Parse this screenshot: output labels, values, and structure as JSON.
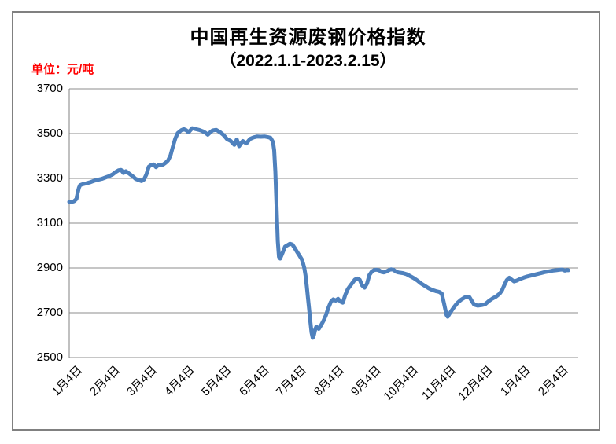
{
  "chart": {
    "title": "中国再生资源废钢价格指数",
    "subtitle": "（2022.1.1-2023.2.15）",
    "unit_label": "单位：元/吨",
    "colors": {
      "line": "#4F81BD",
      "gridline": "#8C8C8C",
      "axis": "#808080",
      "outer_border": "#808080",
      "unit_label": "#FF0000",
      "tick_label": "#000000",
      "title": "#000000",
      "background": "#FFFFFF"
    }
  },
  "chart_data": {
    "type": "line",
    "title": "中国再生资源废钢价格指数（2022.1.1-2023.2.15）",
    "ylabel": "元/吨",
    "ylim": [
      2500,
      3700
    ],
    "y_ticks": [
      3700,
      3500,
      3300,
      3100,
      2900,
      2700,
      2500
    ],
    "x_tick_labels": [
      "1月4日",
      "2月4日",
      "3月4日",
      "4月4日",
      "5月4日",
      "6月4日",
      "7月4日",
      "8月4日",
      "9月4日",
      "10月4日",
      "11月4日",
      "12月4日",
      "1月4日",
      "2月4日"
    ],
    "grid": "horizontal-major",
    "legend": "none",
    "series": [
      {
        "points": [
          [
            "2022-01-04",
            3195
          ],
          [
            "2022-01-06",
            3195
          ],
          [
            "2022-01-08",
            3198
          ],
          [
            "2022-01-10",
            3208
          ],
          [
            "2022-01-11",
            3235
          ],
          [
            "2022-01-12",
            3258
          ],
          [
            "2022-01-13",
            3270
          ],
          [
            "2022-01-15",
            3274
          ],
          [
            "2022-01-18",
            3278
          ],
          [
            "2022-01-21",
            3282
          ],
          [
            "2022-01-24",
            3288
          ],
          [
            "2022-01-27",
            3293
          ],
          [
            "2022-01-31",
            3298
          ],
          [
            "2022-02-03",
            3304
          ],
          [
            "2022-02-06",
            3310
          ],
          [
            "2022-02-09",
            3318
          ],
          [
            "2022-02-12",
            3330
          ],
          [
            "2022-02-14",
            3336
          ],
          [
            "2022-02-16",
            3338
          ],
          [
            "2022-02-18",
            3324
          ],
          [
            "2022-02-20",
            3332
          ],
          [
            "2022-02-23",
            3320
          ],
          [
            "2022-02-26",
            3308
          ],
          [
            "2022-02-28",
            3298
          ],
          [
            "2022-03-02",
            3288
          ],
          [
            "2022-03-04",
            3295
          ],
          [
            "2022-03-06",
            3318
          ],
          [
            "2022-03-08",
            3352
          ],
          [
            "2022-03-10",
            3360
          ],
          [
            "2022-03-12",
            3362
          ],
          [
            "2022-03-14",
            3350
          ],
          [
            "2022-03-16",
            3360
          ],
          [
            "2022-03-18",
            3358
          ],
          [
            "2022-03-20",
            3362
          ],
          [
            "2022-03-22",
            3370
          ],
          [
            "2022-03-24",
            3380
          ],
          [
            "2022-03-26",
            3402
          ],
          [
            "2022-03-28",
            3442
          ],
          [
            "2022-03-30",
            3478
          ],
          [
            "2022-04-01",
            3502
          ],
          [
            "2022-04-04",
            3515
          ],
          [
            "2022-04-06",
            3520
          ],
          [
            "2022-04-08",
            3515
          ],
          [
            "2022-04-10",
            3506
          ],
          [
            "2022-04-13",
            3524
          ],
          [
            "2022-04-16",
            3520
          ],
          [
            "2022-04-19",
            3516
          ],
          [
            "2022-04-22",
            3510
          ],
          [
            "2022-04-24",
            3504
          ],
          [
            "2022-04-26",
            3495
          ],
          [
            "2022-04-28",
            3506
          ],
          [
            "2022-04-30",
            3514
          ],
          [
            "2022-05-02",
            3517
          ],
          [
            "2022-05-05",
            3507
          ],
          [
            "2022-05-08",
            3494
          ],
          [
            "2022-05-11",
            3475
          ],
          [
            "2022-05-14",
            3467
          ],
          [
            "2022-05-17",
            3450
          ],
          [
            "2022-05-19",
            3474
          ],
          [
            "2022-05-21",
            3444
          ],
          [
            "2022-05-24",
            3467
          ],
          [
            "2022-05-27",
            3456
          ],
          [
            "2022-05-30",
            3476
          ],
          [
            "2022-06-02",
            3483
          ],
          [
            "2022-06-05",
            3487
          ],
          [
            "2022-06-08",
            3486
          ],
          [
            "2022-06-11",
            3487
          ],
          [
            "2022-06-14",
            3484
          ],
          [
            "2022-06-16",
            3481
          ],
          [
            "2022-06-18",
            3462
          ],
          [
            "2022-06-19",
            3425
          ],
          [
            "2022-06-20",
            3330
          ],
          [
            "2022-06-21",
            3180
          ],
          [
            "2022-06-22",
            3020
          ],
          [
            "2022-06-23",
            2950
          ],
          [
            "2022-06-24",
            2942
          ],
          [
            "2022-06-26",
            2968
          ],
          [
            "2022-06-28",
            2995
          ],
          [
            "2022-07-01",
            3008
          ],
          [
            "2022-07-03",
            3005
          ],
          [
            "2022-07-05",
            2990
          ],
          [
            "2022-07-07",
            2972
          ],
          [
            "2022-07-09",
            2955
          ],
          [
            "2022-07-11",
            2938
          ],
          [
            "2022-07-12",
            2920
          ],
          [
            "2022-07-13",
            2900
          ],
          [
            "2022-07-14",
            2868
          ],
          [
            "2022-07-15",
            2820
          ],
          [
            "2022-07-16",
            2768
          ],
          [
            "2022-07-17",
            2718
          ],
          [
            "2022-07-18",
            2660
          ],
          [
            "2022-07-19",
            2612
          ],
          [
            "2022-07-20",
            2588
          ],
          [
            "2022-07-21",
            2600
          ],
          [
            "2022-07-22",
            2625
          ],
          [
            "2022-07-23",
            2638
          ],
          [
            "2022-07-25",
            2628
          ],
          [
            "2022-07-27",
            2645
          ],
          [
            "2022-07-29",
            2665
          ],
          [
            "2022-07-31",
            2690
          ],
          [
            "2022-08-02",
            2722
          ],
          [
            "2022-08-04",
            2748
          ],
          [
            "2022-08-06",
            2760
          ],
          [
            "2022-08-08",
            2754
          ],
          [
            "2022-08-10",
            2762
          ],
          [
            "2022-08-12",
            2750
          ],
          [
            "2022-08-14",
            2745
          ],
          [
            "2022-08-16",
            2780
          ],
          [
            "2022-08-18",
            2805
          ],
          [
            "2022-08-20",
            2820
          ],
          [
            "2022-08-22",
            2834
          ],
          [
            "2022-08-24",
            2848
          ],
          [
            "2022-08-26",
            2853
          ],
          [
            "2022-08-28",
            2847
          ],
          [
            "2022-08-30",
            2822
          ],
          [
            "2022-09-01",
            2812
          ],
          [
            "2022-09-03",
            2830
          ],
          [
            "2022-09-05",
            2868
          ],
          [
            "2022-09-07",
            2884
          ],
          [
            "2022-09-09",
            2891
          ],
          [
            "2022-09-11",
            2892
          ],
          [
            "2022-09-13",
            2890
          ],
          [
            "2022-09-15",
            2882
          ],
          [
            "2022-09-17",
            2880
          ],
          [
            "2022-09-19",
            2884
          ],
          [
            "2022-09-21",
            2890
          ],
          [
            "2022-09-23",
            2894
          ],
          [
            "2022-09-25",
            2892
          ],
          [
            "2022-09-27",
            2884
          ],
          [
            "2022-09-29",
            2880
          ],
          [
            "2022-10-02",
            2877
          ],
          [
            "2022-10-05",
            2872
          ],
          [
            "2022-10-08",
            2863
          ],
          [
            "2022-10-11",
            2854
          ],
          [
            "2022-10-14",
            2843
          ],
          [
            "2022-10-17",
            2830
          ],
          [
            "2022-10-20",
            2820
          ],
          [
            "2022-10-23",
            2810
          ],
          [
            "2022-10-26",
            2802
          ],
          [
            "2022-10-29",
            2797
          ],
          [
            "2022-11-01",
            2793
          ],
          [
            "2022-11-03",
            2786
          ],
          [
            "2022-11-05",
            2740
          ],
          [
            "2022-11-07",
            2690
          ],
          [
            "2022-11-08",
            2682
          ],
          [
            "2022-11-10",
            2700
          ],
          [
            "2022-11-13",
            2724
          ],
          [
            "2022-11-16",
            2744
          ],
          [
            "2022-11-19",
            2758
          ],
          [
            "2022-11-22",
            2768
          ],
          [
            "2022-11-24",
            2772
          ],
          [
            "2022-11-26",
            2770
          ],
          [
            "2022-11-28",
            2752
          ],
          [
            "2022-11-30",
            2736
          ],
          [
            "2022-12-02",
            2732
          ],
          [
            "2022-12-05",
            2734
          ],
          [
            "2022-12-08",
            2738
          ],
          [
            "2022-12-11",
            2752
          ],
          [
            "2022-12-14",
            2763
          ],
          [
            "2022-12-17",
            2772
          ],
          [
            "2022-12-20",
            2785
          ],
          [
            "2022-12-22",
            2800
          ],
          [
            "2022-12-24",
            2824
          ],
          [
            "2022-12-26",
            2846
          ],
          [
            "2022-12-28",
            2856
          ],
          [
            "2022-12-30",
            2848
          ],
          [
            "2023-01-01",
            2840
          ],
          [
            "2023-01-03",
            2843
          ],
          [
            "2023-01-06",
            2851
          ],
          [
            "2023-01-09",
            2857
          ],
          [
            "2023-01-12",
            2862
          ],
          [
            "2023-01-15",
            2866
          ],
          [
            "2023-01-18",
            2870
          ],
          [
            "2023-01-21",
            2874
          ],
          [
            "2023-01-24",
            2878
          ],
          [
            "2023-01-27",
            2882
          ],
          [
            "2023-01-30",
            2885
          ],
          [
            "2023-02-02",
            2888
          ],
          [
            "2023-02-05",
            2890
          ],
          [
            "2023-02-08",
            2892
          ],
          [
            "2023-02-10",
            2893
          ],
          [
            "2023-02-12",
            2888
          ],
          [
            "2023-02-14",
            2891
          ],
          [
            "2023-02-15",
            2890
          ]
        ]
      }
    ]
  }
}
